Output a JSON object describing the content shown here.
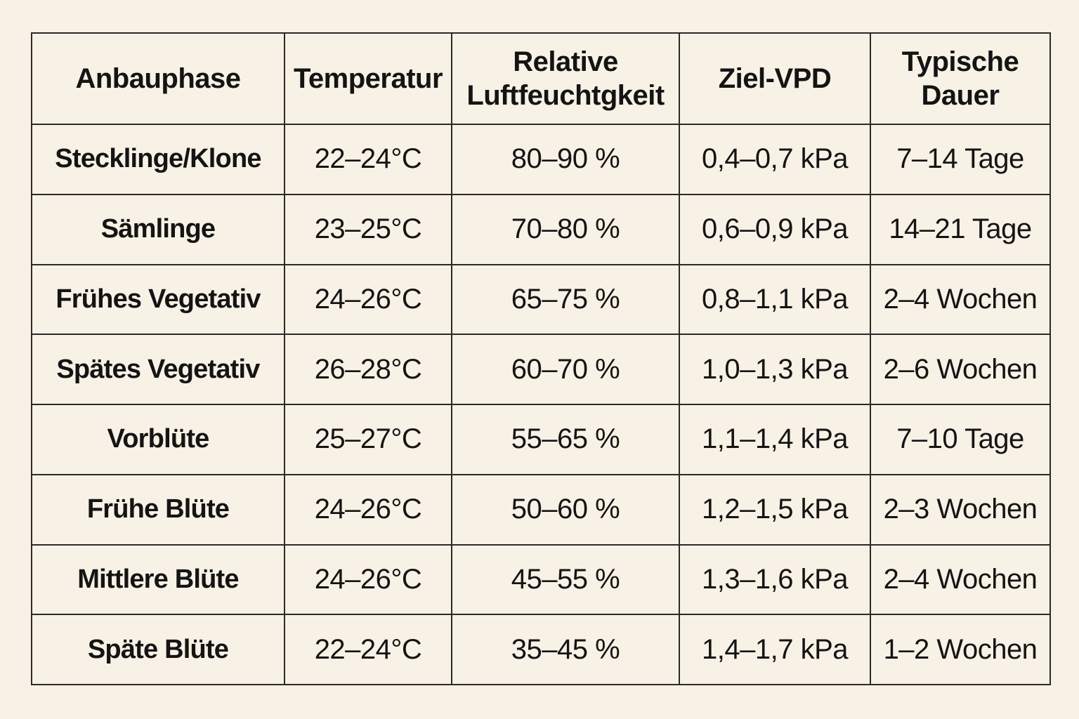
{
  "table": {
    "header": [
      "Anbauphase",
      "Temperatur",
      "Relative Luftfeuchtgkeit",
      "Ziel-VPD",
      "Typische Dauer"
    ],
    "rows": [
      [
        "Stecklinge/Klone",
        "22–24°C",
        "80–90 %",
        "0,4–0,7 kPa",
        "7–14 Tage"
      ],
      [
        "Sämlinge",
        "23–25°C",
        "70–80 %",
        "0,6–0,9 kPa",
        "14–21 Tage"
      ],
      [
        "Frühes Vegetativ",
        "24–26°C",
        "65–75 %",
        "0,8–1,1 kPa",
        "2–4 Wochen"
      ],
      [
        "Spätes Vegetativ",
        "26–28°C",
        "60–70 %",
        "1,0–1,3 kPa",
        "2–6 Wochen"
      ],
      [
        "Vorblüte",
        "25–27°C",
        "55–65 %",
        "1,1–1,4 kPa",
        "7–10 Tage"
      ],
      [
        "Frühe Blüte",
        "24–26°C",
        "50–60 %",
        "1,2–1,5 kPa",
        "2–3 Wochen"
      ],
      [
        "Mittlere Blüte",
        "24–26°C",
        "45–55 %",
        "1,3–1,6 kPa",
        "2–4 Wochen"
      ],
      [
        "Späte Blüte",
        "22–24°C",
        "35–45 %",
        "1,4–1,7 kPa",
        "1–2 Wochen"
      ]
    ]
  }
}
